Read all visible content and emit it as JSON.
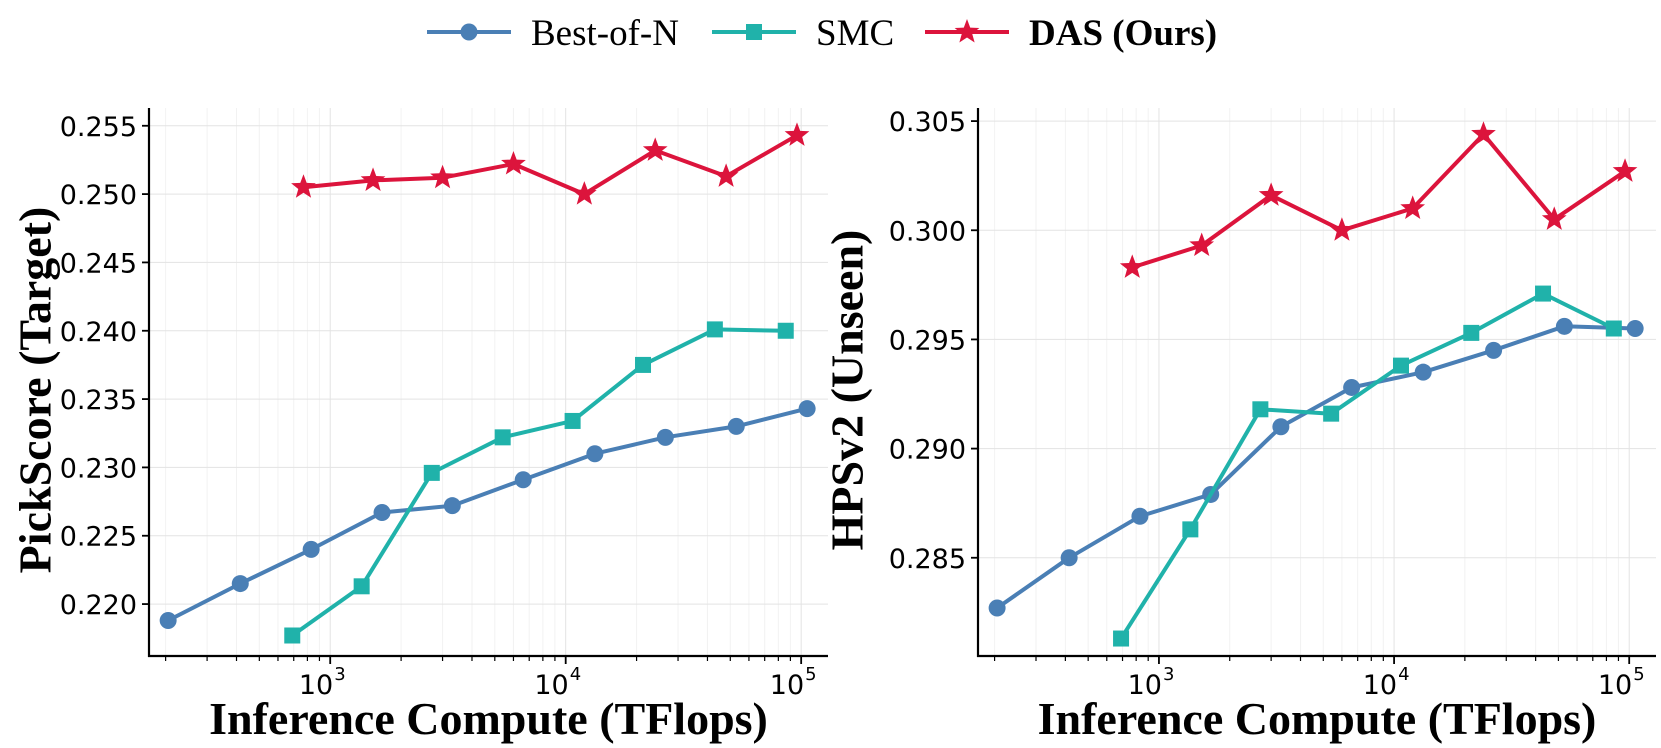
{
  "legend": [
    {
      "label": "Best-of-N",
      "color": "#4a7fb5",
      "marker": "circle",
      "bold": false
    },
    {
      "label": "SMC",
      "color": "#20b2aa",
      "marker": "square",
      "bold": false
    },
    {
      "label": "DAS (Ours)",
      "color": "#dc143c",
      "marker": "star",
      "bold": true
    }
  ],
  "chart_data": [
    {
      "type": "line",
      "xscale": "log",
      "xlabel": "Inference Compute (TFlops)",
      "ylabel": "PickScore (Target)",
      "xlim": [
        170,
        130000
      ],
      "ylim": [
        0.2162,
        0.2563
      ],
      "xticks": [
        {
          "base": "10",
          "exp": "3"
        },
        {
          "base": "10",
          "exp": "4"
        },
        {
          "base": "10",
          "exp": "5"
        }
      ],
      "yticks": [
        "0.220",
        "0.225",
        "0.230",
        "0.235",
        "0.240",
        "0.245",
        "0.250",
        "0.255"
      ],
      "series": [
        {
          "name": "Best-of-N",
          "marker": "circle",
          "color": "#4a7fb5",
          "x": [
            205,
            415,
            830,
            1660,
            3300,
            6600,
            13300,
            26500,
            53000,
            106000
          ],
          "y": [
            0.2188,
            0.2215,
            0.224,
            0.2267,
            0.2272,
            0.2291,
            0.231,
            0.2322,
            0.233,
            0.2343
          ]
        },
        {
          "name": "SMC",
          "marker": "square",
          "color": "#20b2aa",
          "x": [
            690,
            1360,
            2700,
            5400,
            10700,
            21300,
            43000,
            86000
          ],
          "y": [
            0.2177,
            0.2213,
            0.2296,
            0.2322,
            0.2334,
            0.2375,
            0.2401,
            0.24
          ]
        },
        {
          "name": "DAS (Ours)",
          "marker": "star",
          "color": "#dc143c",
          "x": [
            770,
            1520,
            3000,
            6000,
            12000,
            24000,
            48000,
            96000
          ],
          "y": [
            0.2505,
            0.251,
            0.2512,
            0.2522,
            0.25,
            0.2532,
            0.2513,
            0.2543
          ]
        }
      ]
    },
    {
      "type": "line",
      "xscale": "log",
      "xlabel": "Inference Compute (TFlops)",
      "ylabel": "HPSv2 (Unseen)",
      "xlim": [
        170,
        130000
      ],
      "ylim": [
        0.2805,
        0.3056
      ],
      "xticks": [
        {
          "base": "10",
          "exp": "3"
        },
        {
          "base": "10",
          "exp": "4"
        },
        {
          "base": "10",
          "exp": "5"
        }
      ],
      "yticks": [
        "0.285",
        "0.290",
        "0.295",
        "0.300",
        "0.305"
      ],
      "series": [
        {
          "name": "Best-of-N",
          "marker": "circle",
          "color": "#4a7fb5",
          "x": [
            205,
            415,
            830,
            1660,
            3300,
            6600,
            13300,
            26500,
            53000,
            106000
          ],
          "y": [
            0.2827,
            0.285,
            0.2869,
            0.2879,
            0.291,
            0.2928,
            0.2935,
            0.2945,
            0.2956,
            0.2955
          ]
        },
        {
          "name": "SMC",
          "marker": "square",
          "color": "#20b2aa",
          "x": [
            690,
            1360,
            2700,
            5400,
            10700,
            21300,
            43000,
            86000
          ],
          "y": [
            0.2813,
            0.2863,
            0.2918,
            0.2916,
            0.2938,
            0.2953,
            0.2971,
            0.2955
          ]
        },
        {
          "name": "DAS (Ours)",
          "marker": "star",
          "color": "#dc143c",
          "x": [
            770,
            1520,
            3000,
            6000,
            12000,
            24000,
            48000,
            96000
          ],
          "y": [
            0.2983,
            0.2993,
            0.3016,
            0.3,
            0.301,
            0.3044,
            0.3005,
            0.3027
          ]
        }
      ]
    }
  ]
}
